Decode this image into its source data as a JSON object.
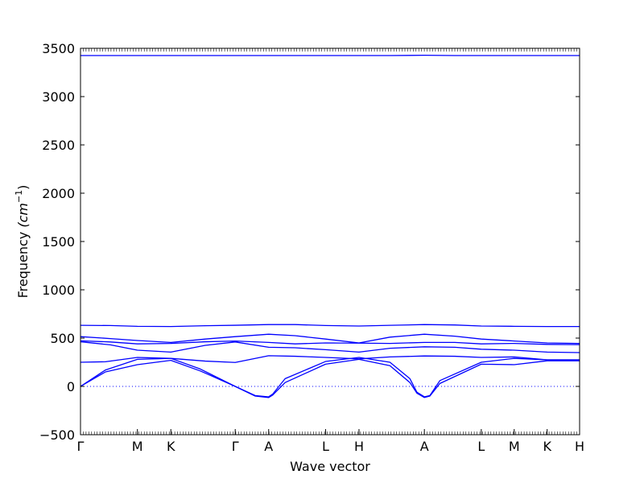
{
  "chart_data": {
    "type": "line",
    "title": "",
    "xlabel": "Wave vector",
    "ylabel_text": "Frequency ",
    "ylabel_unit": "(cm",
    "ylabel_sup": "−1",
    "ylabel_close": ")",
    "ylim": [
      -500,
      3500
    ],
    "y_ticks": [
      "−500",
      "0",
      "500",
      "1000",
      "1500",
      "2000",
      "2500",
      "3000",
      "3500"
    ],
    "y_tick_values": [
      -500,
      0,
      500,
      1000,
      1500,
      2000,
      2500,
      3000,
      3500
    ],
    "x_ticks": [
      "Γ",
      "M",
      "K",
      "Γ",
      "A",
      "L",
      "H",
      "A",
      "L",
      "M",
      "K",
      "H"
    ],
    "x_tick_positions": [
      0.0,
      0.114,
      0.181,
      0.31,
      0.377,
      0.491,
      0.558,
      0.689,
      0.803,
      0.869,
      0.935,
      1.0
    ],
    "grid": false,
    "legend": "none",
    "line_color": "#0000ff",
    "zero_line_style": "dotted",
    "series": [
      {
        "values_x": [
          0.0,
          0.05,
          0.114,
          0.181,
          0.25,
          0.31,
          0.377,
          0.43,
          0.491,
          0.558,
          0.62,
          0.689,
          0.75,
          0.803,
          0.869,
          0.935,
          1.0
        ],
        "values_y": [
          3425,
          3425,
          3425,
          3425,
          3425,
          3425,
          3425,
          3425,
          3425,
          3425,
          3425,
          3428,
          3425,
          3425,
          3425,
          3425,
          3425
        ]
      },
      {
        "values_x": [
          0.0,
          0.06,
          0.114,
          0.181,
          0.25,
          0.31,
          0.377,
          0.43,
          0.491,
          0.558,
          0.62,
          0.689,
          0.75,
          0.803,
          0.869,
          0.935,
          1.0
        ],
        "values_y": [
          632,
          630,
          622,
          620,
          628,
          633,
          640,
          640,
          630,
          625,
          632,
          640,
          636,
          625,
          622,
          620,
          620
        ]
      },
      {
        "values_x": [
          0.0,
          0.06,
          0.114,
          0.181,
          0.25,
          0.31,
          0.377,
          0.43,
          0.491,
          0.558,
          0.62,
          0.689,
          0.75,
          0.803,
          0.869,
          0.935,
          1.0
        ],
        "values_y": [
          515,
          495,
          475,
          455,
          490,
          515,
          540,
          525,
          490,
          450,
          510,
          540,
          520,
          490,
          470,
          450,
          445
        ]
      },
      {
        "values_x": [
          0.0,
          0.06,
          0.114,
          0.181,
          0.25,
          0.31,
          0.377,
          0.43,
          0.491,
          0.558,
          0.62,
          0.689,
          0.75,
          0.803,
          0.869,
          0.935,
          1.0
        ],
        "values_y": [
          472,
          460,
          440,
          445,
          462,
          470,
          455,
          440,
          450,
          448,
          445,
          455,
          455,
          440,
          445,
          435,
          432
        ]
      },
      {
        "values_x": [
          0.0,
          0.06,
          0.114,
          0.181,
          0.25,
          0.31,
          0.377,
          0.43,
          0.491,
          0.558,
          0.62,
          0.689,
          0.75,
          0.803,
          0.869,
          0.935,
          1.0
        ],
        "values_y": [
          462,
          430,
          375,
          355,
          425,
          460,
          405,
          400,
          380,
          355,
          395,
          410,
          405,
          385,
          375,
          355,
          350
        ]
      },
      {
        "values_x": [
          0.0,
          0.05,
          0.114,
          0.181,
          0.25,
          0.31,
          0.377,
          0.43,
          0.491,
          0.558,
          0.62,
          0.689,
          0.75,
          0.803,
          0.869,
          0.935,
          1.0
        ],
        "values_y": [
          250,
          255,
          300,
          290,
          262,
          248,
          318,
          312,
          300,
          285,
          305,
          315,
          312,
          300,
          305,
          275,
          275
        ]
      },
      {
        "values_x": [
          0.0,
          0.05,
          0.114,
          0.181,
          0.24,
          0.31,
          0.35,
          0.377,
          0.385,
          0.41,
          0.491,
          0.558,
          0.62,
          0.66,
          0.674,
          0.689,
          0.7,
          0.72,
          0.803,
          0.869,
          0.935,
          1.0
        ],
        "values_y": [
          0,
          170,
          280,
          290,
          180,
          0,
          -95,
          -108,
          -80,
          80,
          258,
          300,
          250,
          80,
          -60,
          -108,
          -95,
          60,
          250,
          290,
          275,
          275
        ]
      },
      {
        "values_x": [
          0.0,
          0.05,
          0.114,
          0.181,
          0.24,
          0.31,
          0.35,
          0.377,
          0.385,
          0.41,
          0.491,
          0.558,
          0.62,
          0.66,
          0.674,
          0.689,
          0.7,
          0.72,
          0.803,
          0.869,
          0.935,
          1.0
        ],
        "values_y": [
          0,
          150,
          225,
          270,
          160,
          0,
          -100,
          -115,
          -90,
          40,
          230,
          280,
          215,
          40,
          -70,
          -115,
          -100,
          30,
          230,
          225,
          265,
          265
        ]
      }
    ]
  }
}
